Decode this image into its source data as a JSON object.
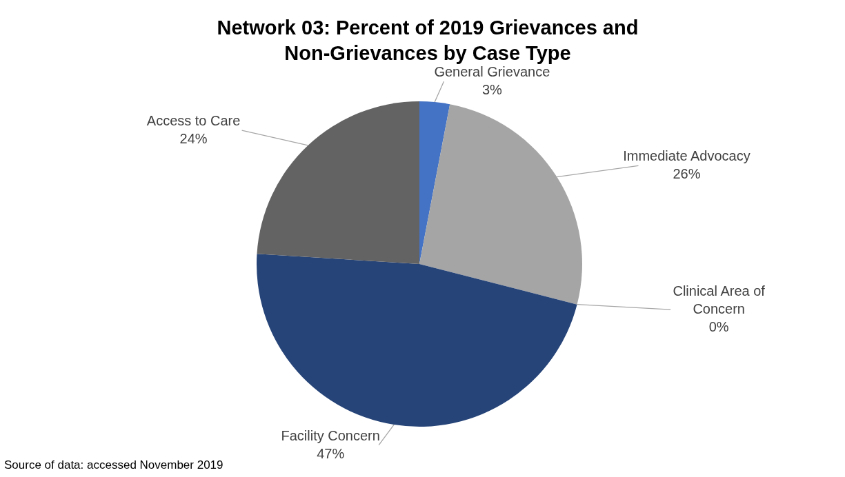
{
  "chart_data": {
    "type": "pie",
    "title": "Network 03:  Percent of 2019 Grievances and Non-Grievances by Case Type",
    "categories": [
      "General Grievance",
      "Immediate Advocacy",
      "Clinical Area of Concern",
      "Facility Concern",
      "Access to Care"
    ],
    "values": [
      3,
      26,
      0,
      47,
      24
    ],
    "colors": [
      "#4472c4",
      "#a5a5a5",
      "#ffc000",
      "#264478",
      "#636363"
    ],
    "value_labels": [
      "3%",
      "26%",
      "0%",
      "47%",
      "24%"
    ],
    "annotations": [
      "Source of data:  accessed November 2019"
    ]
  }
}
